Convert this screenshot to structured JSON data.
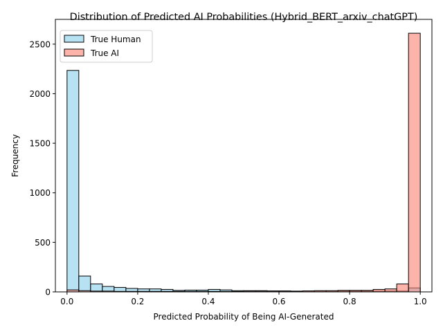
{
  "chart_data": {
    "type": "bar",
    "title": "Distribution of Predicted AI Probabilities (Hybrid_BERT_arxiv_chatGPT)",
    "xlabel": "Predicted Probability of Being AI-Generated",
    "ylabel": "Frequency",
    "xlim": [
      -0.033,
      1.033
    ],
    "ylim": [
      0,
      2750
    ],
    "xticks": [
      "0.0",
      "0.2",
      "0.4",
      "0.6",
      "0.8",
      "1.0"
    ],
    "yticks": [
      "0",
      "500",
      "1000",
      "1500",
      "2000",
      "2500"
    ],
    "grid": false,
    "legend_placement": "top-left",
    "bin_width": 0.0333,
    "bin_starts": [
      0.0,
      0.0333,
      0.0667,
      0.1,
      0.1333,
      0.1667,
      0.2,
      0.2333,
      0.2667,
      0.3,
      0.3333,
      0.3667,
      0.4,
      0.4333,
      0.4667,
      0.5,
      0.5333,
      0.5667,
      0.6,
      0.6333,
      0.6667,
      0.7,
      0.7333,
      0.7667,
      0.8,
      0.8333,
      0.8667,
      0.9,
      0.9333,
      0.9667
    ],
    "series": [
      {
        "name": "True Human",
        "color": "#87ceeb",
        "opacity": 0.6,
        "values": [
          2235,
          160,
          80,
          55,
          45,
          35,
          30,
          30,
          25,
          15,
          18,
          18,
          25,
          20,
          12,
          12,
          12,
          10,
          10,
          8,
          8,
          8,
          8,
          8,
          8,
          8,
          8,
          8,
          8,
          40
        ]
      },
      {
        "name": "True AI",
        "color": "#fa8072",
        "opacity": 0.6,
        "values": [
          20,
          12,
          8,
          8,
          5,
          5,
          5,
          5,
          5,
          5,
          5,
          5,
          5,
          5,
          5,
          8,
          8,
          8,
          8,
          5,
          10,
          12,
          12,
          15,
          15,
          15,
          25,
          30,
          80,
          2610
        ]
      }
    ]
  }
}
